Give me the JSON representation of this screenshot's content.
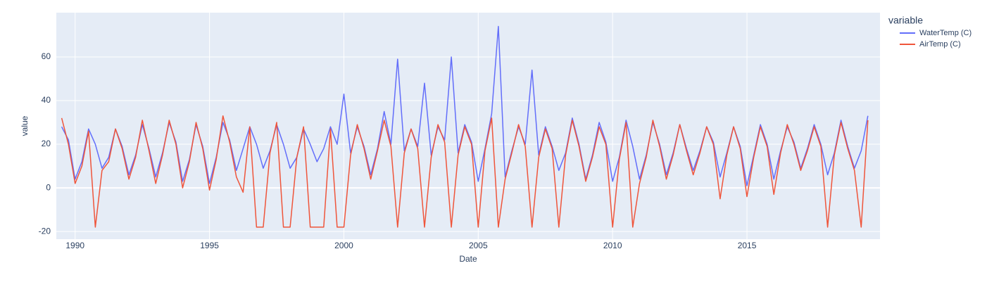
{
  "chart_data": {
    "type": "line",
    "x_label": "Date",
    "y_label": "value",
    "legend_title": "variable",
    "x": [
      1989.5,
      1989.75,
      1990,
      1990.25,
      1990.5,
      1990.75,
      1991,
      1991.25,
      1991.5,
      1991.75,
      1992,
      1992.25,
      1992.5,
      1992.75,
      1993,
      1993.25,
      1993.5,
      1993.75,
      1994,
      1994.25,
      1994.5,
      1994.75,
      1995,
      1995.25,
      1995.5,
      1995.75,
      1996,
      1996.25,
      1996.5,
      1996.75,
      1997,
      1997.25,
      1997.5,
      1997.75,
      1998,
      1998.25,
      1998.5,
      1998.75,
      1999,
      1999.25,
      1999.5,
      1999.75,
      2000,
      2000.25,
      2000.5,
      2000.75,
      2001,
      2001.25,
      2001.5,
      2001.75,
      2002,
      2002.25,
      2002.5,
      2002.75,
      2003,
      2003.25,
      2003.5,
      2003.75,
      2004,
      2004.25,
      2004.5,
      2004.75,
      2005,
      2005.25,
      2005.5,
      2005.75,
      2006,
      2006.25,
      2006.5,
      2006.75,
      2007,
      2007.25,
      2007.5,
      2007.75,
      2008,
      2008.25,
      2008.5,
      2008.75,
      2009,
      2009.25,
      2009.5,
      2009.75,
      2010,
      2010.25,
      2010.5,
      2010.75,
      2011,
      2011.25,
      2011.5,
      2011.75,
      2012,
      2012.25,
      2012.5,
      2012.75,
      2013,
      2013.25,
      2013.5,
      2013.75,
      2014,
      2014.25,
      2014.5,
      2014.75,
      2015,
      2015.25,
      2015.5,
      2015.75,
      2016,
      2016.25,
      2016.5,
      2016.75,
      2017,
      2017.25,
      2017.5,
      2017.75,
      2018,
      2018.25,
      2018.5,
      2018.75,
      2019,
      2019.25,
      2019.5
    ],
    "series": [
      {
        "name": "WaterTemp (C)",
        "color": "#636efa",
        "values": [
          28,
          22,
          4,
          12,
          27,
          20,
          9,
          14,
          27,
          19,
          6,
          15,
          29,
          18,
          5,
          16,
          30,
          21,
          3,
          13,
          29,
          19,
          2,
          14,
          30,
          22,
          8,
          18,
          28,
          20,
          9,
          17,
          29,
          20,
          9,
          14,
          27,
          20,
          12,
          18,
          28,
          20,
          43,
          16,
          28,
          19,
          6,
          18,
          35,
          20,
          59,
          17,
          27,
          19,
          48,
          15,
          28,
          22,
          60,
          16,
          29,
          21,
          3,
          18,
          34,
          74,
          5,
          17,
          28,
          20,
          54,
          15,
          28,
          19,
          8,
          16,
          32,
          20,
          4,
          15,
          30,
          21,
          3,
          14,
          31,
          19,
          4,
          15,
          30,
          20,
          6,
          16,
          29,
          18,
          8,
          17,
          28,
          21,
          5,
          16,
          28,
          19,
          1,
          15,
          29,
          20,
          4,
          17,
          28,
          21,
          9,
          18,
          29,
          20,
          6,
          16,
          31,
          19,
          9,
          17,
          33
        ]
      },
      {
        "name": "AirTemp (C)",
        "color": "#EF553B",
        "values": [
          32,
          20,
          2,
          10,
          26,
          -18,
          8,
          12,
          27,
          18,
          4,
          14,
          31,
          17,
          2,
          15,
          31,
          20,
          0,
          12,
          30,
          18,
          -1,
          13,
          33,
          21,
          5,
          -2,
          28,
          -18,
          -18,
          16,
          30,
          -18,
          -18,
          14,
          28,
          -18,
          -18,
          -18,
          27,
          -18,
          -18,
          15,
          29,
          18,
          4,
          17,
          31,
          19,
          -18,
          16,
          27,
          18,
          -18,
          14,
          29,
          21,
          -18,
          15,
          28,
          20,
          -18,
          17,
          32,
          -18,
          4,
          16,
          29,
          19,
          -18,
          14,
          27,
          18,
          -18,
          15,
          31,
          19,
          3,
          14,
          28,
          20,
          -18,
          13,
          30,
          -18,
          2,
          14,
          31,
          19,
          4,
          15,
          29,
          17,
          6,
          16,
          28,
          20,
          -5,
          15,
          28,
          18,
          -4,
          14,
          28,
          19,
          -3,
          16,
          29,
          20,
          8,
          17,
          28,
          19,
          -18,
          15,
          30,
          18,
          8,
          -18,
          31
        ]
      }
    ],
    "xlim": [
      1989.3,
      2019.95
    ],
    "xticks": [
      1990,
      1995,
      2000,
      2005,
      2010,
      2015
    ],
    "ylim": [
      -23.5,
      80.3
    ],
    "yticks": [
      -20,
      0,
      20,
      40,
      60
    ],
    "grid": true,
    "legend": "right"
  }
}
